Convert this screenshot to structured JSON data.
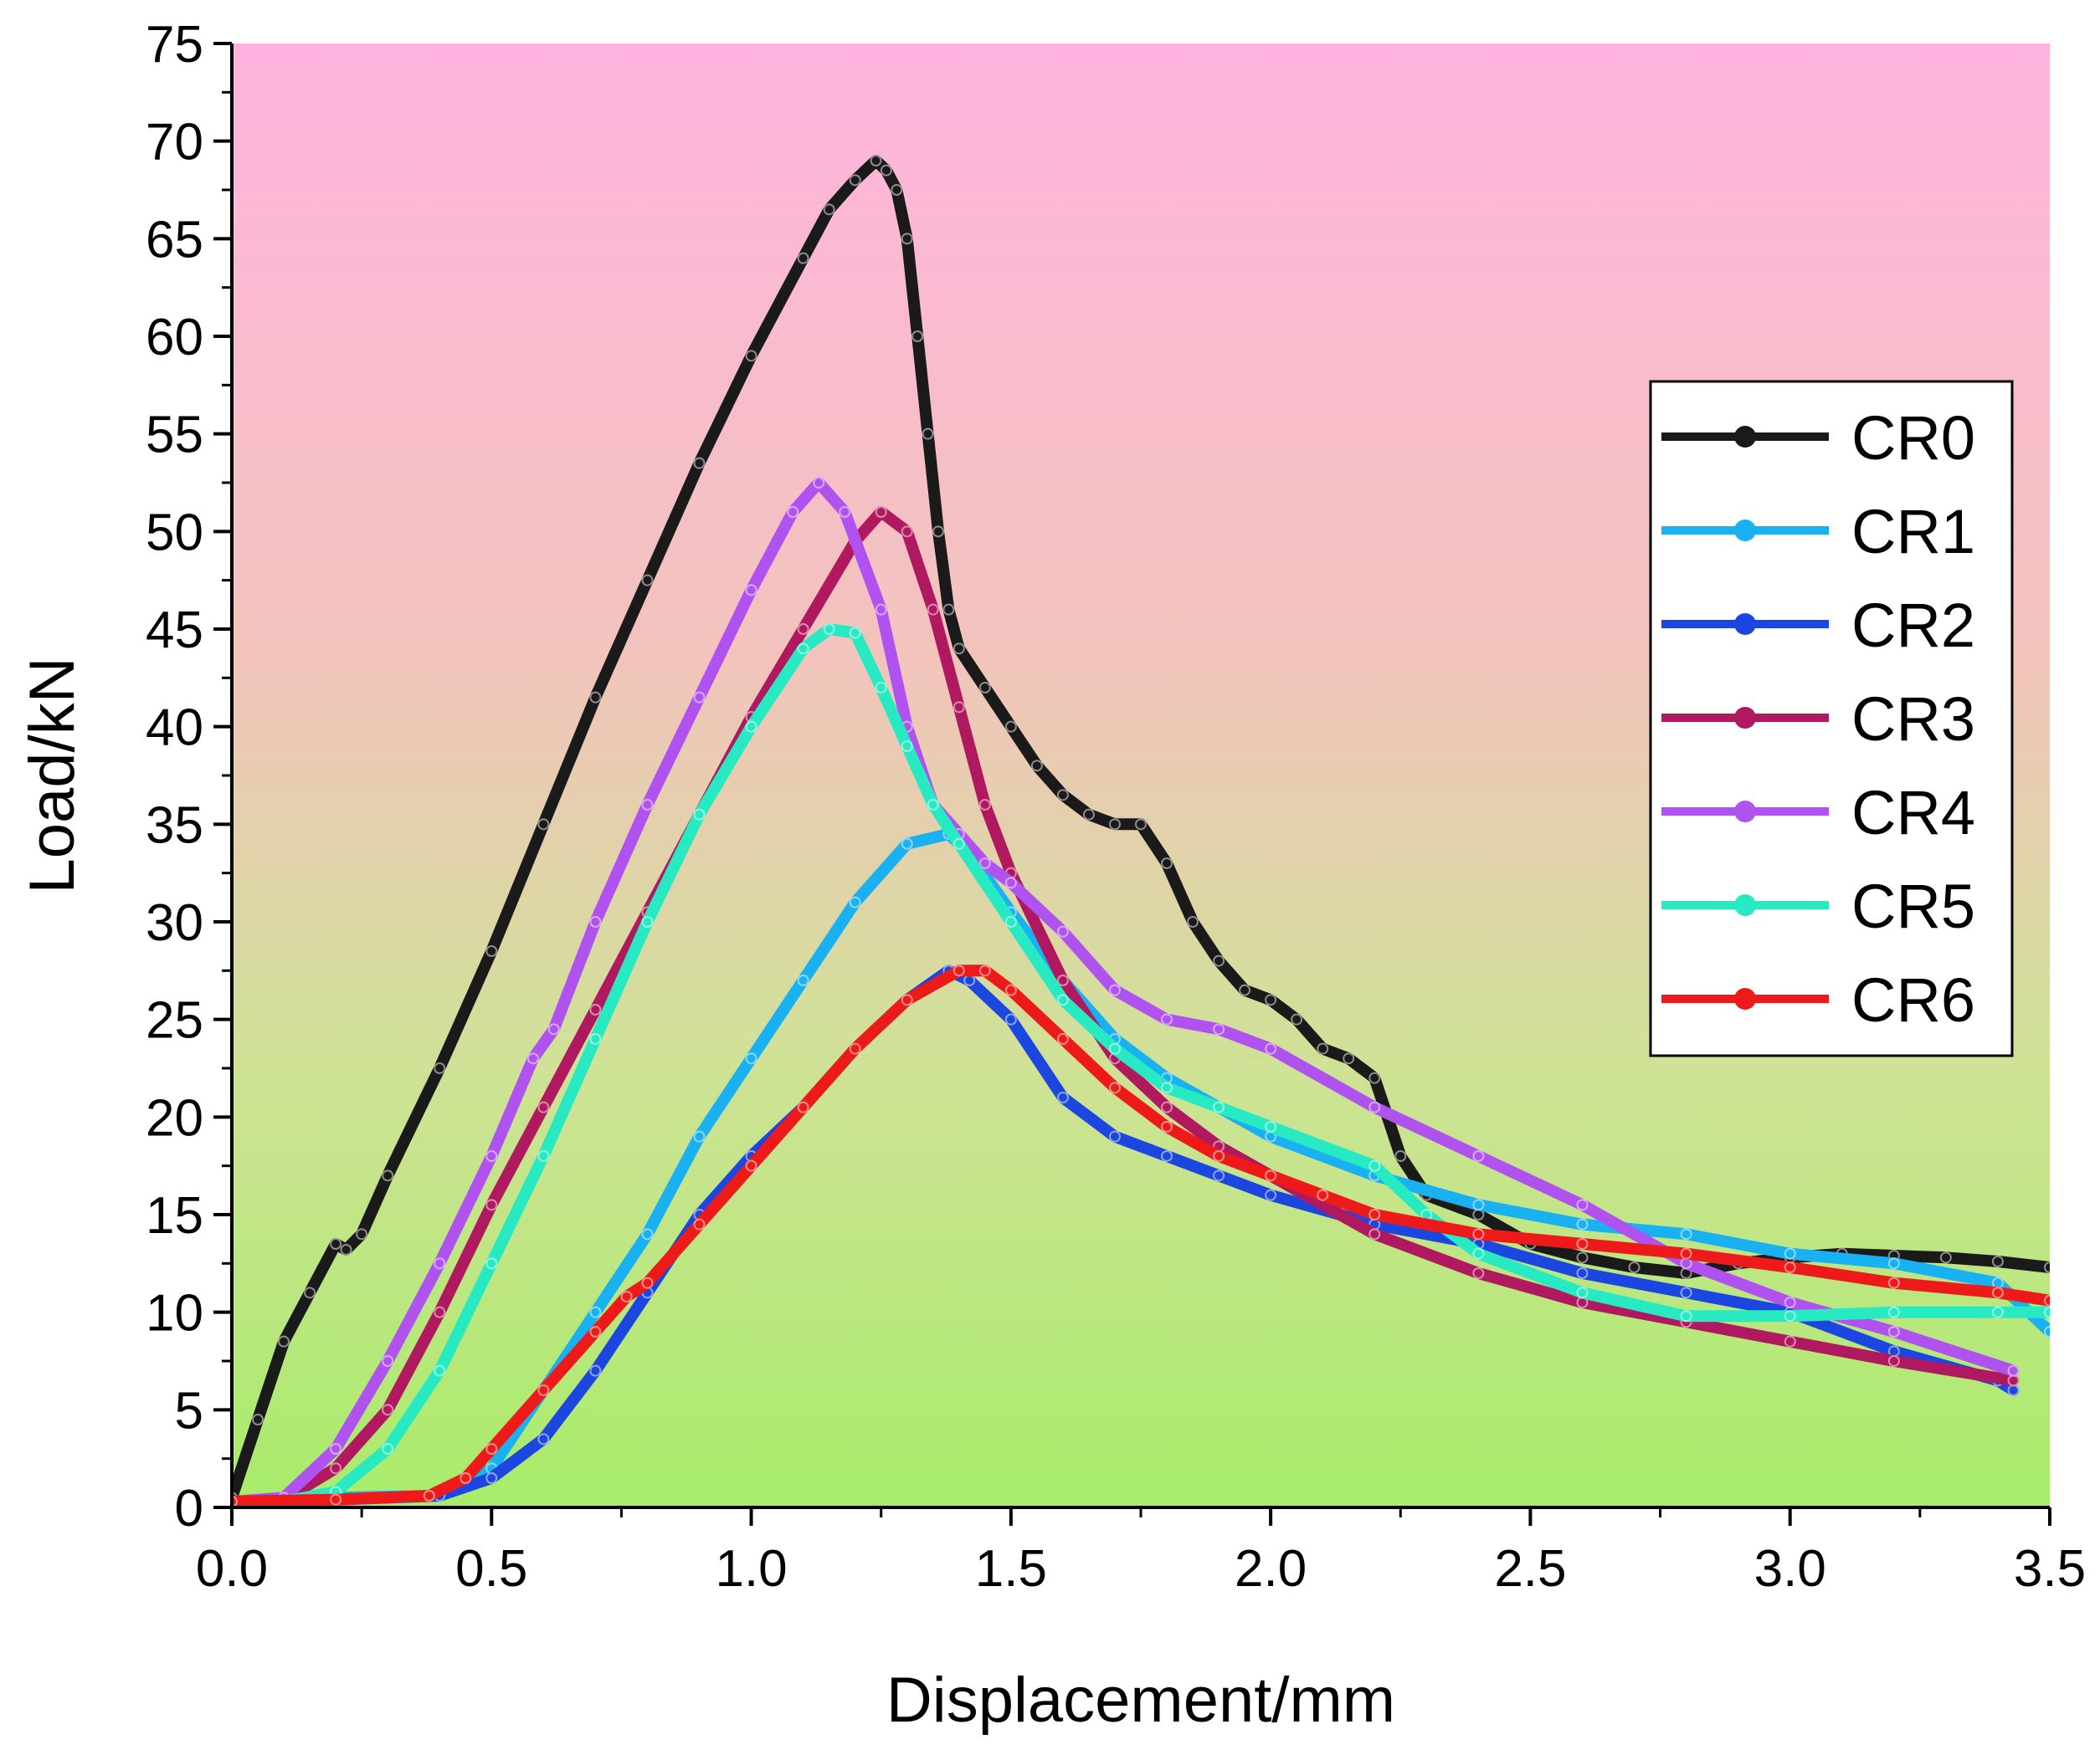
{
  "chart_data": {
    "type": "line",
    "title": "",
    "xlabel": "Displacement/mm",
    "ylabel": "Load/kN",
    "xlim": [
      0,
      3.5
    ],
    "ylim": [
      0,
      75
    ],
    "xticks": [
      "0.0",
      "0.5",
      "1.0",
      "1.5",
      "2.0",
      "2.5",
      "3.0",
      "3.5"
    ],
    "yticks": [
      "0",
      "5",
      "10",
      "15",
      "20",
      "25",
      "30",
      "35",
      "40",
      "45",
      "50",
      "55",
      "60",
      "65",
      "70",
      "75"
    ],
    "background_gradient": [
      "#ffb3de",
      "#a8ec6a"
    ],
    "legend_position": "right",
    "series": [
      {
        "name": "CR0",
        "color": "#1a1a1a",
        "x": [
          0.0,
          0.05,
          0.1,
          0.15,
          0.2,
          0.22,
          0.25,
          0.3,
          0.4,
          0.5,
          0.6,
          0.7,
          0.8,
          0.9,
          1.0,
          1.1,
          1.15,
          1.2,
          1.24,
          1.26,
          1.28,
          1.3,
          1.32,
          1.34,
          1.36,
          1.38,
          1.4,
          1.45,
          1.5,
          1.55,
          1.6,
          1.65,
          1.7,
          1.75,
          1.8,
          1.85,
          1.9,
          1.95,
          2.0,
          2.05,
          2.1,
          2.15,
          2.2,
          2.25,
          2.3,
          2.4,
          2.5,
          2.6,
          2.7,
          2.8,
          2.9,
          3.0,
          3.1,
          3.2,
          3.3,
          3.4,
          3.5
        ],
        "y": [
          0.5,
          4.5,
          8.5,
          11.0,
          13.5,
          13.2,
          14.0,
          17.0,
          22.5,
          28.5,
          35.0,
          41.5,
          47.5,
          53.5,
          59.0,
          64.0,
          66.5,
          68.0,
          69.0,
          68.5,
          67.5,
          65.0,
          60.0,
          55.0,
          50.0,
          46.0,
          44.0,
          42.0,
          40.0,
          38.0,
          36.5,
          35.5,
          35.0,
          35.0,
          33.0,
          30.0,
          28.0,
          26.5,
          26.0,
          25.0,
          23.5,
          23.0,
          22.0,
          18.0,
          16.0,
          15.0,
          13.5,
          12.8,
          12.3,
          12.0,
          12.5,
          12.8,
          13.0,
          12.9,
          12.8,
          12.6,
          12.3
        ]
      },
      {
        "name": "CR1",
        "color": "#1ab1f2",
        "x": [
          0.0,
          0.2,
          0.4,
          0.5,
          0.6,
          0.7,
          0.8,
          0.9,
          1.0,
          1.1,
          1.2,
          1.3,
          1.38,
          1.42,
          1.5,
          1.6,
          1.7,
          1.8,
          1.9,
          2.0,
          2.2,
          2.4,
          2.6,
          2.8,
          3.0,
          3.2,
          3.4,
          3.5
        ],
        "y": [
          0.3,
          0.5,
          0.6,
          2.0,
          6.0,
          10.0,
          14.0,
          19.0,
          23.0,
          27.0,
          31.0,
          34.0,
          34.5,
          33.5,
          30.5,
          27.0,
          24.0,
          22.0,
          20.5,
          19.0,
          17.0,
          15.5,
          14.5,
          14.0,
          13.0,
          12.5,
          11.5,
          9.0
        ]
      },
      {
        "name": "CR2",
        "color": "#1c46e0",
        "x": [
          0.0,
          0.2,
          0.4,
          0.5,
          0.6,
          0.7,
          0.8,
          0.9,
          1.0,
          1.1,
          1.2,
          1.3,
          1.38,
          1.42,
          1.5,
          1.6,
          1.7,
          1.8,
          1.9,
          2.0,
          2.2,
          2.4,
          2.6,
          2.8,
          3.0,
          3.2,
          3.4,
          3.43
        ],
        "y": [
          0.3,
          0.4,
          0.6,
          1.5,
          3.5,
          7.0,
          11.0,
          15.0,
          18.0,
          20.5,
          23.5,
          26.0,
          27.5,
          27.0,
          25.0,
          21.0,
          19.0,
          18.0,
          17.0,
          16.0,
          14.5,
          13.5,
          12.0,
          11.0,
          10.0,
          8.0,
          6.5,
          6.0
        ]
      },
      {
        "name": "CR3",
        "color": "#b01860",
        "x": [
          0.0,
          0.1,
          0.2,
          0.3,
          0.4,
          0.5,
          0.6,
          0.7,
          0.8,
          0.9,
          1.0,
          1.1,
          1.2,
          1.25,
          1.3,
          1.35,
          1.4,
          1.45,
          1.5,
          1.6,
          1.7,
          1.8,
          1.9,
          2.0,
          2.2,
          2.4,
          2.6,
          2.8,
          3.0,
          3.2,
          3.43
        ],
        "y": [
          0.3,
          0.4,
          2.0,
          5.0,
          10.0,
          15.5,
          20.5,
          25.5,
          30.5,
          35.5,
          40.5,
          45.0,
          49.5,
          51.0,
          50.0,
          46.0,
          41.0,
          36.0,
          32.5,
          27.0,
          23.0,
          20.5,
          18.5,
          17.0,
          14.0,
          12.0,
          10.5,
          9.5,
          8.5,
          7.5,
          6.5
        ]
      },
      {
        "name": "CR4",
        "color": "#b052f0",
        "x": [
          0.0,
          0.1,
          0.2,
          0.3,
          0.4,
          0.5,
          0.58,
          0.62,
          0.7,
          0.8,
          0.9,
          1.0,
          1.08,
          1.13,
          1.18,
          1.25,
          1.3,
          1.35,
          1.4,
          1.45,
          1.5,
          1.6,
          1.7,
          1.8,
          1.9,
          2.0,
          2.2,
          2.4,
          2.6,
          2.8,
          3.0,
          3.2,
          3.43
        ],
        "y": [
          0.3,
          0.5,
          3.0,
          7.5,
          12.5,
          18.0,
          23.0,
          24.5,
          30.0,
          36.0,
          41.5,
          47.0,
          51.0,
          52.5,
          51.0,
          46.0,
          40.0,
          36.0,
          34.5,
          33.0,
          32.0,
          29.5,
          26.5,
          25.0,
          24.5,
          23.5,
          20.5,
          18.0,
          15.5,
          12.5,
          10.5,
          9.0,
          7.0
        ]
      },
      {
        "name": "CR5",
        "color": "#28eac2",
        "x": [
          0.0,
          0.1,
          0.2,
          0.3,
          0.4,
          0.5,
          0.6,
          0.7,
          0.8,
          0.9,
          1.0,
          1.1,
          1.15,
          1.2,
          1.25,
          1.3,
          1.35,
          1.4,
          1.5,
          1.6,
          1.7,
          1.8,
          1.9,
          2.0,
          2.2,
          2.3,
          2.4,
          2.6,
          2.8,
          3.0,
          3.2,
          3.4,
          3.5
        ],
        "y": [
          0.2,
          0.3,
          0.8,
          3.0,
          7.0,
          12.5,
          18.0,
          24.0,
          30.0,
          35.5,
          40.0,
          44.0,
          45.0,
          44.8,
          42.0,
          39.0,
          36.0,
          34.0,
          30.0,
          26.0,
          23.5,
          21.5,
          20.5,
          19.5,
          17.5,
          15.0,
          13.0,
          11.0,
          9.8,
          9.8,
          10.0,
          10.0,
          10.0
        ]
      },
      {
        "name": "CR6",
        "color": "#ee1a1a",
        "x": [
          0.0,
          0.2,
          0.38,
          0.45,
          0.5,
          0.6,
          0.7,
          0.76,
          0.8,
          0.9,
          1.0,
          1.1,
          1.2,
          1.3,
          1.4,
          1.45,
          1.5,
          1.6,
          1.7,
          1.8,
          1.9,
          2.0,
          2.1,
          2.2,
          2.4,
          2.6,
          2.8,
          3.0,
          3.2,
          3.4,
          3.5
        ],
        "y": [
          0.3,
          0.4,
          0.6,
          1.5,
          3.0,
          6.0,
          9.0,
          10.8,
          11.5,
          14.5,
          17.5,
          20.5,
          23.5,
          26.0,
          27.5,
          27.5,
          26.5,
          24.0,
          21.5,
          19.5,
          18.0,
          17.0,
          16.0,
          15.0,
          14.0,
          13.5,
          13.0,
          12.3,
          11.5,
          11.0,
          10.6
        ]
      }
    ]
  }
}
